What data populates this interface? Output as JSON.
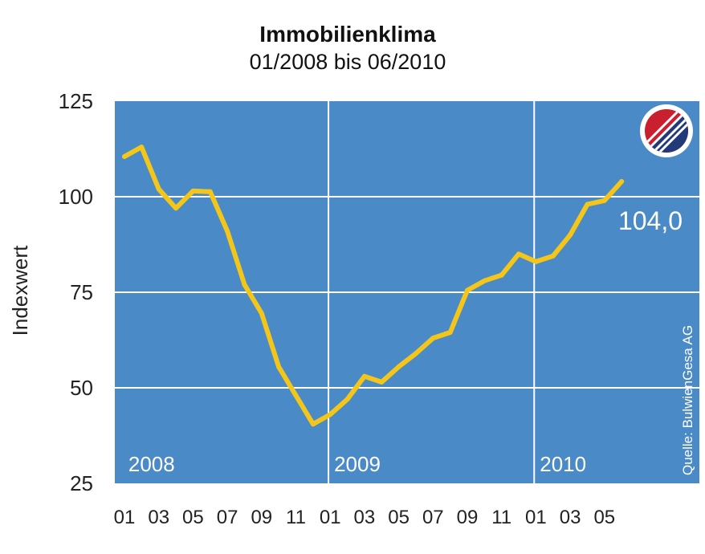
{
  "chart_data": {
    "type": "line",
    "title": "Immobilienklima",
    "subtitle": "01/2008 bis 06/2010",
    "ylabel": "Indexwert",
    "xlabel": "",
    "ylim": [
      25,
      125
    ],
    "yticks": [
      "125",
      "100",
      "75",
      "50",
      "25"
    ],
    "xtick_labels": [
      "01",
      "03",
      "05",
      "07",
      "09",
      "11",
      "01",
      "03",
      "05",
      "07",
      "09",
      "11",
      "01",
      "03",
      "05"
    ],
    "years": [
      "2008",
      "2009",
      "2010"
    ],
    "grid": true,
    "end_label": "104,0",
    "source": "Quelle: BulwienGesa AG",
    "colors": {
      "background": "#4a8ac6",
      "line": "#f5c61a",
      "grid": "#ffffff"
    },
    "x": [
      "01/2008",
      "02/2008",
      "03/2008",
      "04/2008",
      "05/2008",
      "06/2008",
      "07/2008",
      "08/2008",
      "09/2008",
      "10/2008",
      "11/2008",
      "12/2008",
      "01/2009",
      "02/2009",
      "03/2009",
      "04/2009",
      "05/2009",
      "06/2009",
      "07/2009",
      "08/2009",
      "09/2009",
      "10/2009",
      "11/2009",
      "12/2009",
      "01/2010",
      "02/2010",
      "03/2010",
      "04/2010",
      "05/2010",
      "06/2010"
    ],
    "series": [
      {
        "values": [
          110.5,
          113,
          102,
          97,
          101.5,
          101.3,
          91,
          77,
          69.5,
          55.5,
          48,
          40.5,
          43,
          47,
          53,
          51.5,
          55.5,
          59,
          63,
          64.5,
          75.5,
          78,
          79.5,
          85,
          83,
          84.5,
          90,
          98,
          99,
          104
        ]
      }
    ]
  }
}
